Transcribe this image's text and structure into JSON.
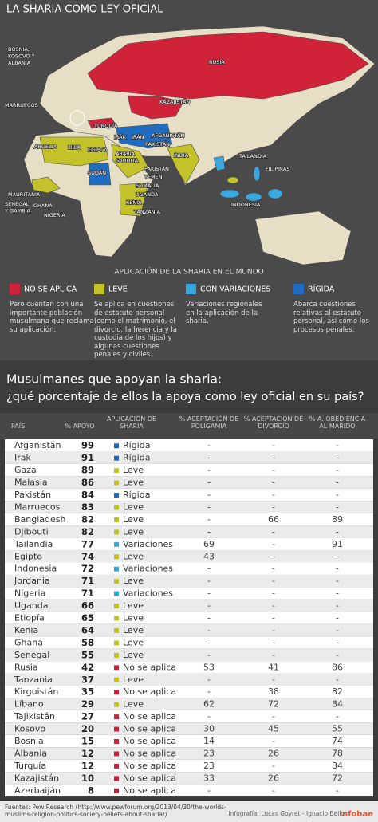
{
  "header": {
    "title": "LA SHARIA COMO LEY OFICIAL"
  },
  "map": {
    "labels": [
      [
        "BOSNIA,",
        "KOSOVO Y",
        "ALBANIA"
      ],
      [
        "RUSIA"
      ],
      [
        "KAZAJISTÁN"
      ],
      [
        "MARRUECOS"
      ],
      [
        "TURQUÍA"
      ],
      [
        "IRÁK"
      ],
      [
        "IRÁN"
      ],
      [
        "AFGANISTÁN"
      ],
      [
        "PAKISTÁN"
      ],
      [
        "ARGELIA"
      ],
      [
        "LIBIA"
      ],
      [
        "EGIPTO"
      ],
      [
        "INDIA"
      ],
      [
        "ARABIA",
        "SAUDITA"
      ],
      [
        "TAILANDIA"
      ],
      [
        "FILIPINAS"
      ],
      [
        "SUDÁN"
      ],
      [
        "PAKISTÁN"
      ],
      [
        "YEMEN"
      ],
      [
        "SOMALIA"
      ],
      [
        "UGANDA"
      ],
      [
        "KENIA"
      ],
      [
        "TANZANIA"
      ],
      [
        "MAURITANIA"
      ],
      [
        "SENEGAL",
        "Y GAMBIA"
      ],
      [
        "GHANA"
      ],
      [
        "NIGERIA"
      ],
      [
        "INDONESIA"
      ]
    ],
    "legend": {
      "title": "APLICACIÓN DE LA SHARIA EN EL MUNDO",
      "items": [
        {
          "name": "NO SE APLICA",
          "color": "#d0233a",
          "description": "Pero cuentan con una importante población musulmana que reclama su aplicación."
        },
        {
          "name": "LEVE",
          "color": "#c3c22a",
          "description": "Se aplica en cuestiones de estatuto personal (como el matrimonio, el divorcio, la herencia y la custodia de los hijos) y algunas cuestiones penales y civiles."
        },
        {
          "name": "CON VARIACIONES",
          "color": "#3aa8e0",
          "description": "Variaciones regionales en la aplicación de la sharia."
        },
        {
          "name": "RÍGIDA",
          "color": "#1f6cc0",
          "description": "Abarca cuestiones relativas al estatuto personal, así como los procesos penales."
        }
      ]
    }
  },
  "table": {
    "title": "Musulmanes que apoyan la sharia:",
    "subtitle": "¿qué porcentaje de ellos la apoya como ley oficial en su país?",
    "columns": [
      "PAÍS",
      "% APOYO",
      "APLICACIÓN DE SHARIA",
      "% ACEPTACIÓN DE POLIGAMIA",
      "% ACEPTACIÓN DE DIVORCIO",
      "% A. OBEDIENCIA AL MARIDO"
    ],
    "rows": [
      [
        "Afganistán",
        99,
        "Rígida",
        "-",
        "-",
        "-"
      ],
      [
        "Irak",
        91,
        "Rígida",
        "-",
        "-",
        "-"
      ],
      [
        "Gaza",
        89,
        "Leve",
        "-",
        "-",
        "-"
      ],
      [
        "Malasia",
        86,
        "Leve",
        "-",
        "-",
        "-"
      ],
      [
        "Pakistán",
        84,
        "Rígida",
        "-",
        "-",
        "-"
      ],
      [
        "Marruecos",
        83,
        "Leve",
        "-",
        "-",
        "-"
      ],
      [
        "Bangladesh",
        82,
        "Leve",
        "-",
        66,
        89
      ],
      [
        "Djibouti",
        82,
        "Leve",
        "-",
        "-",
        "-"
      ],
      [
        "Tailandia",
        77,
        "Variaciones",
        69,
        "-",
        91
      ],
      [
        "Egipto",
        74,
        "Leve",
        43,
        "-",
        "-"
      ],
      [
        "Indonesia",
        72,
        "Variaciones",
        "-",
        "-",
        "-"
      ],
      [
        "Jordania",
        71,
        "Leve",
        "-",
        "-",
        "-"
      ],
      [
        "Nigeria",
        71,
        "Variaciones",
        "-",
        "-",
        "-"
      ],
      [
        "Uganda",
        66,
        "Leve",
        "-",
        "-",
        "-"
      ],
      [
        "Etiopía",
        65,
        "Leve",
        "-",
        "-",
        "-"
      ],
      [
        "Kenia",
        64,
        "Leve",
        "-",
        "-",
        "-"
      ],
      [
        "Ghana",
        58,
        "Leve",
        "-",
        "-",
        "-"
      ],
      [
        "Senegal",
        55,
        "Leve",
        "-",
        "-",
        "-"
      ],
      [
        "Rusia",
        42,
        "No se aplica",
        53,
        41,
        86
      ],
      [
        "Tanzania",
        37,
        "Leve",
        "-",
        "-",
        "-"
      ],
      [
        "Kirguistán",
        35,
        "No se aplica",
        "-",
        38,
        82
      ],
      [
        "Líbano",
        29,
        "Leve",
        62,
        72,
        84
      ],
      [
        "Tajikistán",
        27,
        "No se aplica",
        "-",
        "-",
        "-"
      ],
      [
        "Kosovo",
        20,
        "No se aplica",
        30,
        45,
        55
      ],
      [
        "Bosnia",
        15,
        "No se aplica",
        14,
        "-",
        74
      ],
      [
        "Albania",
        12,
        "No se aplica",
        23,
        26,
        78
      ],
      [
        "Turquía",
        12,
        "No se aplica",
        23,
        "-",
        84
      ],
      [
        "Kazajistán",
        10,
        "No se aplica",
        33,
        26,
        72
      ],
      [
        "Azerbaiján",
        8,
        "No se aplica",
        "-",
        "-",
        "-"
      ]
    ]
  },
  "footer": {
    "source": "Fuentes: Pew Research (http://www.pewforum.org/2013/04/30/the-worlds-muslims-religion-politics-society-beliefs-about-sharia/)",
    "credit": "Infografía: Lucas Goyret - Ignacio Bello",
    "brand": "infobae"
  }
}
